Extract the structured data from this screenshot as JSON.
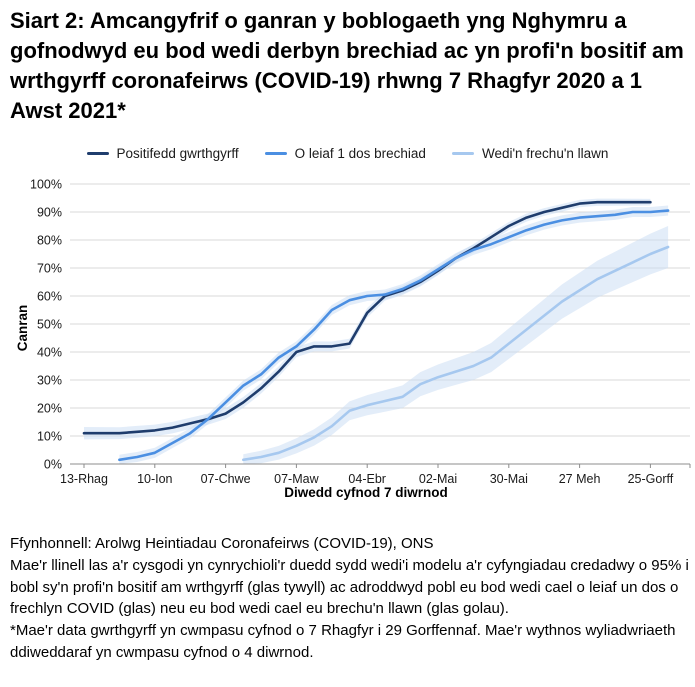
{
  "title": "Siart 2: Amcangyfrif o ganran y boblogaeth yng Nghymru a gofnodwyd eu bod wedi derbyn brechiad ac yn profi'n bositif am wrthgyrff coronafeirws (COVID-19) rhwng 7 Rhagfyr 2020 a 1 Awst 2021*",
  "chart_data": {
    "type": "line",
    "x_axis_label": "Diwedd cyfnod 7 diwrnod",
    "y_axis_label": "Canran",
    "ylim": [
      0,
      100
    ],
    "y_tick_step": 10,
    "y_tick_suffix": "%",
    "grid": true,
    "legend_position": "top",
    "x_tick_labels": [
      "13-Rhag",
      "10-Ion",
      "07-Chwe",
      "07-Maw",
      "04-Ebr",
      "02-Mai",
      "30-Mai",
      "27 Meh",
      "25-Gorff"
    ],
    "x_tick_indices": [
      0,
      4,
      8,
      12,
      16,
      20,
      24,
      28,
      32
    ],
    "x_weeks": [
      "13-Rhag",
      "20-Rhag",
      "27-Rhag",
      "03-Ion",
      "10-Ion",
      "17-Ion",
      "24-Ion",
      "31-Ion",
      "07-Chwe",
      "14-Chwe",
      "21-Chwe",
      "28-Chwe",
      "07-Maw",
      "14-Maw",
      "21-Maw",
      "28-Maw",
      "04-Ebr",
      "11-Ebr",
      "18-Ebr",
      "25-Ebr",
      "02-Mai",
      "09-Mai",
      "16-Mai",
      "23-Mai",
      "30-Mai",
      "06-Meh",
      "13-Meh",
      "20-Meh",
      "27-Meh",
      "04-Gorff",
      "11-Gorff",
      "18-Gorff",
      "25-Gorff",
      "01-Awst"
    ],
    "band_color": "#c8dcf3",
    "band_opacity": 0.5,
    "series": [
      {
        "name": "Positifedd gwrthgyrff",
        "color": "#1f3d6d",
        "band": {
          "start": 2.2,
          "end": 1.2
        },
        "values": [
          11,
          11,
          11,
          11.5,
          12,
          13,
          14.5,
          16,
          18,
          22,
          27,
          33,
          40,
          42,
          42,
          43,
          54,
          60,
          62,
          65,
          69,
          73.5,
          77,
          81,
          85,
          88,
          90,
          91.5,
          93,
          93.5,
          93.5,
          93.5,
          93.5,
          null
        ]
      },
      {
        "name": "O leiaf 1 dos brechiad",
        "color": "#4b8fe2",
        "band": {
          "start": 1.8,
          "end": 1.8
        },
        "values": [
          null,
          null,
          1.5,
          2.5,
          4,
          7.5,
          11,
          16,
          22,
          28,
          32,
          38,
          42,
          48,
          55,
          58.5,
          60,
          60.5,
          62.5,
          65.5,
          69.5,
          73.5,
          76.5,
          78.5,
          81,
          83.5,
          85.5,
          87,
          88,
          88.5,
          89,
          90,
          90,
          90.5
        ]
      },
      {
        "name": "Wedi'n frechu'n llawn",
        "color": "#a6c8ef",
        "band": {
          "start": 2,
          "end": 7.5
        },
        "values": [
          null,
          null,
          null,
          null,
          null,
          null,
          null,
          null,
          null,
          1.5,
          2.5,
          4,
          6.5,
          9.5,
          13.5,
          19,
          21,
          22.5,
          24,
          28.5,
          31,
          33,
          35,
          38,
          43,
          48,
          53,
          58,
          62,
          66,
          69,
          72,
          75,
          77.5
        ]
      }
    ]
  },
  "footer": {
    "source": "Ffynhonnell: Arolwg Heintiadau Coronafeirws (COVID-19), ONS",
    "description": "Mae'r llinell las a'r cysgodi yn cynrychioli'r duedd sydd wedi'i modelu a'r cyfyngiadau credadwy o 95% i bobl sy'n profi'n bositif am wrthgyrff (glas tywyll) ac adroddwyd pobl eu bod wedi cael o leiaf un dos o frechlyn COVID (glas) neu eu bod wedi cael eu brechu'n llawn (glas golau).",
    "footnote": "*Mae'r data gwrthgyrff yn cwmpasu cyfnod o 7 Rhagfyr i 29 Gorffennaf. Mae'r wythnos wyliadwriaeth ddiweddaraf yn cwmpasu cyfnod o 4 diwrnod."
  }
}
